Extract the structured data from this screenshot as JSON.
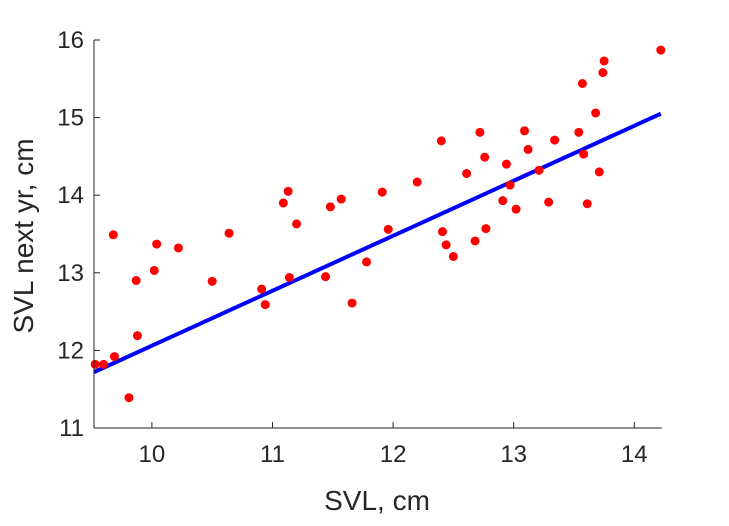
{
  "chart_data": {
    "type": "scatter",
    "xlabel": "SVL, cm",
    "ylabel": "SVL next yr, cm",
    "xlim": [
      9.52,
      14.23
    ],
    "ylim": [
      11,
      16
    ],
    "xticks": [
      "10",
      "11",
      "12",
      "13",
      "14"
    ],
    "yticks": [
      "11",
      "12",
      "13",
      "14",
      "15",
      "16"
    ],
    "grid": false,
    "legend": "none",
    "colors": {
      "points": "#ff0000",
      "fit_line": "#0000ff",
      "axis": "#262626"
    },
    "series": [
      {
        "type": "scatter",
        "points": [
          [
            9.53,
            11.82
          ],
          [
            9.6,
            11.82
          ],
          [
            9.68,
            13.49
          ],
          [
            9.69,
            11.92
          ],
          [
            9.81,
            11.39
          ],
          [
            9.87,
            12.9
          ],
          [
            9.88,
            12.19
          ],
          [
            10.02,
            13.03
          ],
          [
            10.04,
            13.37
          ],
          [
            10.22,
            13.32
          ],
          [
            10.5,
            12.89
          ],
          [
            10.64,
            13.51
          ],
          [
            10.91,
            12.79
          ],
          [
            10.94,
            12.59
          ],
          [
            11.09,
            13.9
          ],
          [
            11.13,
            14.05
          ],
          [
            11.14,
            12.94
          ],
          [
            11.2,
            13.63
          ],
          [
            11.44,
            12.95
          ],
          [
            11.48,
            13.85
          ],
          [
            11.57,
            13.95
          ],
          [
            11.66,
            12.61
          ],
          [
            11.78,
            13.14
          ],
          [
            11.91,
            14.04
          ],
          [
            11.96,
            13.56
          ],
          [
            12.2,
            14.17
          ],
          [
            12.4,
            14.7
          ],
          [
            12.41,
            13.53
          ],
          [
            12.44,
            13.36
          ],
          [
            12.5,
            13.21
          ],
          [
            12.61,
            14.28
          ],
          [
            12.68,
            13.41
          ],
          [
            12.72,
            14.81
          ],
          [
            12.76,
            14.49
          ],
          [
            12.77,
            13.57
          ],
          [
            12.91,
            13.93
          ],
          [
            12.94,
            14.4
          ],
          [
            12.97,
            14.13
          ],
          [
            13.02,
            13.82
          ],
          [
            13.09,
            14.83
          ],
          [
            13.12,
            14.59
          ],
          [
            13.21,
            14.32
          ],
          [
            13.29,
            13.91
          ],
          [
            13.34,
            14.71
          ],
          [
            13.54,
            14.81
          ],
          [
            13.57,
            15.44
          ],
          [
            13.58,
            14.53
          ],
          [
            13.61,
            13.89
          ],
          [
            13.68,
            15.06
          ],
          [
            13.71,
            14.3
          ],
          [
            13.74,
            15.58
          ],
          [
            13.75,
            15.73
          ],
          [
            14.22,
            15.87
          ]
        ]
      },
      {
        "type": "line",
        "points": [
          [
            9.52,
            11.72
          ],
          [
            14.22,
            15.05
          ]
        ]
      }
    ]
  }
}
